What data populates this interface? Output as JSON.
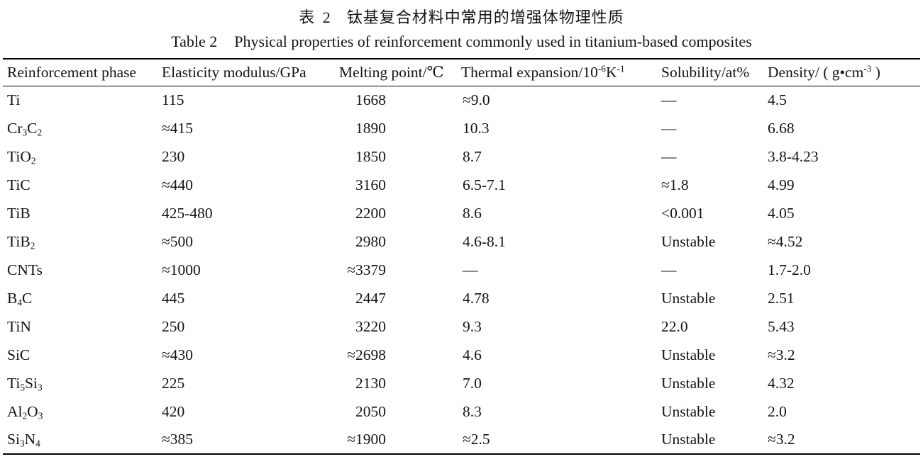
{
  "caption_zh": {
    "label": "表 2",
    "text": "钛基复合材料中常用的增强体物理性质"
  },
  "caption_en": {
    "label": "Table 2",
    "text": "Physical properties of reinforcement commonly used in titanium-based composites"
  },
  "colors": {
    "text": "#141414",
    "rule": "#000000",
    "background": "#ffffff"
  },
  "table": {
    "headers": [
      {
        "name": "reinforcement-phase",
        "segments": [
          [
            "Reinforcement phase",
            ""
          ]
        ]
      },
      {
        "name": "elasticity-modulus",
        "segments": [
          [
            "Elasticity modulus/GPa",
            ""
          ]
        ]
      },
      {
        "name": "melting-point",
        "segments": [
          [
            "Melting point/℃",
            ""
          ]
        ]
      },
      {
        "name": "thermal-expansion",
        "segments": [
          [
            "Thermal expansion/10",
            ""
          ],
          [
            "-6",
            "sup"
          ],
          [
            "K",
            ""
          ],
          [
            "-1",
            "sup"
          ]
        ]
      },
      {
        "name": "solubility",
        "segments": [
          [
            "Solubility/at%",
            ""
          ]
        ]
      },
      {
        "name": "density",
        "segments": [
          [
            "Density/ ( g•cm",
            ""
          ],
          [
            "-3",
            "sup"
          ],
          [
            " )",
            ""
          ]
        ]
      }
    ],
    "rows": [
      {
        "cells": [
          [
            [
              "Ti",
              ""
            ]
          ],
          [
            [
              "115",
              ""
            ]
          ],
          [
            [
              "1668",
              ""
            ]
          ],
          [
            [
              "≈9.0",
              ""
            ]
          ],
          [
            [
              "—",
              ""
            ]
          ],
          [
            [
              "4.5",
              ""
            ]
          ]
        ]
      },
      {
        "cells": [
          [
            [
              "Cr",
              ""
            ],
            [
              "3",
              "sub"
            ],
            [
              "C",
              ""
            ],
            [
              "2",
              "sub"
            ]
          ],
          [
            [
              "≈415",
              ""
            ]
          ],
          [
            [
              "1890",
              ""
            ]
          ],
          [
            [
              "10.3",
              ""
            ]
          ],
          [
            [
              "—",
              ""
            ]
          ],
          [
            [
              "6.68",
              ""
            ]
          ]
        ]
      },
      {
        "cells": [
          [
            [
              "TiO",
              ""
            ],
            [
              "2",
              "sub"
            ]
          ],
          [
            [
              "230",
              ""
            ]
          ],
          [
            [
              "1850",
              ""
            ]
          ],
          [
            [
              "8.7",
              ""
            ]
          ],
          [
            [
              "—",
              ""
            ]
          ],
          [
            [
              "3.8-4.23",
              ""
            ]
          ]
        ]
      },
      {
        "cells": [
          [
            [
              "TiC",
              ""
            ]
          ],
          [
            [
              "≈440",
              ""
            ]
          ],
          [
            [
              "3160",
              ""
            ]
          ],
          [
            [
              "6.5-7.1",
              ""
            ]
          ],
          [
            [
              "≈1.8",
              ""
            ]
          ],
          [
            [
              "4.99",
              ""
            ]
          ]
        ]
      },
      {
        "cells": [
          [
            [
              "TiB",
              ""
            ]
          ],
          [
            [
              "425-480",
              ""
            ]
          ],
          [
            [
              "2200",
              ""
            ]
          ],
          [
            [
              "8.6",
              ""
            ]
          ],
          [
            [
              "<0.001",
              ""
            ]
          ],
          [
            [
              "4.05",
              ""
            ]
          ]
        ]
      },
      {
        "cells": [
          [
            [
              "TiB",
              ""
            ],
            [
              "2",
              "sub"
            ]
          ],
          [
            [
              "≈500",
              ""
            ]
          ],
          [
            [
              "2980",
              ""
            ]
          ],
          [
            [
              "4.6-8.1",
              ""
            ]
          ],
          [
            [
              "Unstable",
              ""
            ]
          ],
          [
            [
              "≈4.52",
              ""
            ]
          ]
        ]
      },
      {
        "cells": [
          [
            [
              "CNTs",
              ""
            ]
          ],
          [
            [
              "≈1000",
              ""
            ]
          ],
          [
            [
              "≈3379",
              ""
            ]
          ],
          [
            [
              "—",
              ""
            ]
          ],
          [
            [
              "—",
              ""
            ]
          ],
          [
            [
              "1.7-2.0",
              ""
            ]
          ]
        ]
      },
      {
        "cells": [
          [
            [
              "B",
              ""
            ],
            [
              "4",
              "sub"
            ],
            [
              "C",
              ""
            ]
          ],
          [
            [
              "445",
              ""
            ]
          ],
          [
            [
              "2447",
              ""
            ]
          ],
          [
            [
              "4.78",
              ""
            ]
          ],
          [
            [
              "Unstable",
              ""
            ]
          ],
          [
            [
              "2.51",
              ""
            ]
          ]
        ]
      },
      {
        "cells": [
          [
            [
              "TiN",
              ""
            ]
          ],
          [
            [
              "250",
              ""
            ]
          ],
          [
            [
              "3220",
              ""
            ]
          ],
          [
            [
              "9.3",
              ""
            ]
          ],
          [
            [
              "22.0",
              ""
            ]
          ],
          [
            [
              "5.43",
              ""
            ]
          ]
        ]
      },
      {
        "cells": [
          [
            [
              "SiC",
              ""
            ]
          ],
          [
            [
              "≈430",
              ""
            ]
          ],
          [
            [
              "≈2698",
              ""
            ]
          ],
          [
            [
              "4.6",
              ""
            ]
          ],
          [
            [
              "Unstable",
              ""
            ]
          ],
          [
            [
              "≈3.2",
              ""
            ]
          ]
        ]
      },
      {
        "cells": [
          [
            [
              "Ti",
              ""
            ],
            [
              "5",
              "sub"
            ],
            [
              "Si",
              ""
            ],
            [
              "3",
              "sub"
            ]
          ],
          [
            [
              "225",
              ""
            ]
          ],
          [
            [
              "2130",
              ""
            ]
          ],
          [
            [
              "7.0",
              ""
            ]
          ],
          [
            [
              "Unstable",
              ""
            ]
          ],
          [
            [
              "4.32",
              ""
            ]
          ]
        ]
      },
      {
        "cells": [
          [
            [
              "Al",
              ""
            ],
            [
              "2",
              "sub"
            ],
            [
              "O",
              ""
            ],
            [
              "3",
              "sub"
            ]
          ],
          [
            [
              "420",
              ""
            ]
          ],
          [
            [
              "2050",
              ""
            ]
          ],
          [
            [
              "8.3",
              ""
            ]
          ],
          [
            [
              "Unstable",
              ""
            ]
          ],
          [
            [
              "2.0",
              ""
            ]
          ]
        ]
      },
      {
        "cells": [
          [
            [
              "Si",
              ""
            ],
            [
              "3",
              "sub"
            ],
            [
              "N",
              ""
            ],
            [
              "4",
              "sub"
            ]
          ],
          [
            [
              "≈385",
              ""
            ]
          ],
          [
            [
              "≈1900",
              ""
            ]
          ],
          [
            [
              "≈2.5",
              ""
            ]
          ],
          [
            [
              "Unstable",
              ""
            ]
          ],
          [
            [
              "≈3.2",
              ""
            ]
          ]
        ]
      }
    ]
  }
}
